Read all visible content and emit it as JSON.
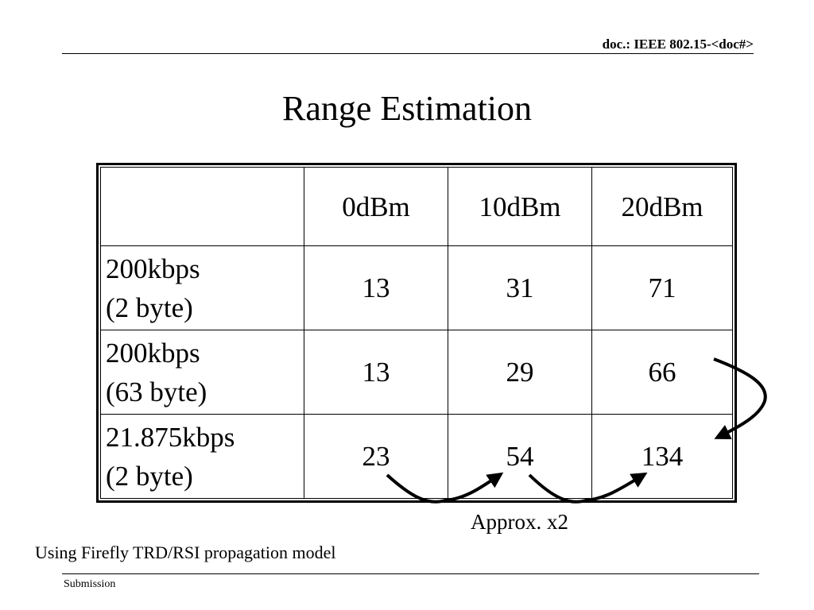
{
  "header": {
    "doc_id": "doc.: IEEE 802.15-<doc#>"
  },
  "slide": {
    "title": "Range Estimation",
    "annotation": "Approx. x2",
    "caption": "Using Firefly TRD/RSI propagation model"
  },
  "table": {
    "corner": "",
    "columns": [
      "0dBm",
      "10dBm",
      "20dBm"
    ],
    "rows": [
      {
        "label_line1": "200kbps",
        "label_line2": "(2 byte)",
        "values": [
          "13",
          "31",
          "71"
        ]
      },
      {
        "label_line1": "200kbps",
        "label_line2": "(63 byte)",
        "values": [
          "13",
          "29",
          "66"
        ]
      },
      {
        "label_line1": "21.875kbps",
        "label_line2": "(2 byte)",
        "values": [
          "23",
          "54",
          "134"
        ]
      }
    ]
  },
  "footer": {
    "label": "Submission"
  }
}
